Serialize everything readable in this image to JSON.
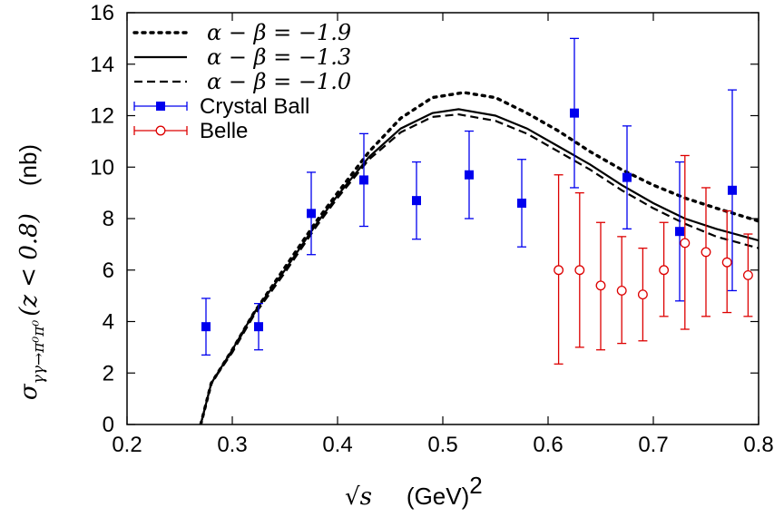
{
  "chart_data": {
    "type": "line",
    "xlabel_sqrt": "√s",
    "xlabel_unit": "(GeV)",
    "xlabel_exp": "2",
    "ylabel_main": "σ",
    "ylabel_sub": "γγ→π⁰π⁰",
    "ylabel_cond": "(z < 0.8)",
    "ylabel_unit": "(nb)",
    "xlim": [
      0.2,
      0.8
    ],
    "ylim": [
      0,
      16
    ],
    "xticks": [
      0.2,
      0.3,
      0.4,
      0.5,
      0.6,
      0.7,
      0.8
    ],
    "xtick_labels": [
      "0.2",
      "0.3",
      "0.4",
      "0.5",
      "0.6",
      "0.7",
      "0.8"
    ],
    "yticks": [
      0,
      2,
      4,
      6,
      8,
      10,
      12,
      14,
      16
    ],
    "ytick_labels": [
      "0",
      "2",
      "4",
      "6",
      "8",
      "10",
      "12",
      "14",
      "16"
    ],
    "grid": false,
    "legend_position": "top-left",
    "series": [
      {
        "name": "α − β = −1.9",
        "kind": "curve",
        "style": "dotted",
        "color": "#000000",
        "x": [
          0.27,
          0.275,
          0.28,
          0.3,
          0.32,
          0.35,
          0.38,
          0.4,
          0.43,
          0.46,
          0.49,
          0.52,
          0.55,
          0.58,
          0.61,
          0.64,
          0.67,
          0.7,
          0.73,
          0.76,
          0.8
        ],
        "y": [
          0.0,
          0.8,
          1.6,
          2.9,
          4.3,
          6.1,
          7.9,
          9.0,
          10.6,
          11.9,
          12.7,
          12.9,
          12.7,
          12.1,
          11.4,
          10.6,
          9.9,
          9.3,
          8.8,
          8.4,
          7.9
        ]
      },
      {
        "name": "α − β = −1.3",
        "kind": "curve",
        "style": "solid",
        "color": "#000000",
        "x": [
          0.27,
          0.275,
          0.28,
          0.3,
          0.32,
          0.35,
          0.38,
          0.4,
          0.43,
          0.46,
          0.49,
          0.515,
          0.55,
          0.58,
          0.61,
          0.64,
          0.67,
          0.7,
          0.73,
          0.76,
          0.8
        ],
        "y": [
          0.0,
          0.8,
          1.6,
          2.9,
          4.3,
          6.0,
          7.8,
          8.9,
          10.4,
          11.5,
          12.1,
          12.25,
          12.0,
          11.5,
          10.8,
          10.1,
          9.3,
          8.6,
          8.0,
          7.6,
          7.15
        ]
      },
      {
        "name": "α − β = −1.0",
        "kind": "curve",
        "style": "dashed",
        "color": "#000000",
        "x": [
          0.27,
          0.275,
          0.28,
          0.3,
          0.32,
          0.35,
          0.38,
          0.4,
          0.43,
          0.46,
          0.49,
          0.515,
          0.55,
          0.58,
          0.61,
          0.64,
          0.67,
          0.7,
          0.73,
          0.76,
          0.8
        ],
        "y": [
          0.0,
          0.8,
          1.6,
          2.8,
          4.2,
          5.9,
          7.7,
          8.8,
          10.3,
          11.35,
          11.95,
          12.05,
          11.8,
          11.3,
          10.6,
          9.9,
          9.1,
          8.4,
          7.8,
          7.3,
          6.85
        ]
      },
      {
        "name": "Crystal Ball",
        "kind": "points",
        "marker": "filled-square",
        "color": "#0000ee",
        "x": [
          0.275,
          0.325,
          0.375,
          0.425,
          0.475,
          0.525,
          0.575,
          0.625,
          0.675,
          0.725,
          0.775
        ],
        "y": [
          3.8,
          3.8,
          8.2,
          9.5,
          8.7,
          9.7,
          8.6,
          12.1,
          9.6,
          7.5,
          9.1
        ],
        "ylow": [
          2.7,
          2.9,
          6.6,
          7.7,
          7.2,
          8.0,
          6.9,
          9.2,
          7.6,
          4.8,
          5.2
        ],
        "yhigh": [
          4.9,
          4.7,
          9.8,
          11.3,
          10.2,
          11.4,
          10.3,
          15.0,
          11.6,
          10.2,
          13.0
        ]
      },
      {
        "name": "Belle",
        "kind": "points",
        "marker": "open-circle",
        "color": "#dd0000",
        "x": [
          0.61,
          0.63,
          0.65,
          0.67,
          0.69,
          0.71,
          0.73,
          0.75,
          0.77,
          0.79
        ],
        "y": [
          6.0,
          6.0,
          5.4,
          5.2,
          5.05,
          6.0,
          7.05,
          6.7,
          6.3,
          5.8
        ],
        "ylow": [
          2.35,
          3.0,
          2.9,
          3.15,
          3.25,
          4.2,
          3.7,
          4.2,
          4.35,
          4.2
        ],
        "yhigh": [
          9.7,
          9.0,
          7.85,
          7.3,
          6.85,
          7.85,
          10.45,
          9.2,
          8.3,
          7.4
        ]
      }
    ]
  }
}
